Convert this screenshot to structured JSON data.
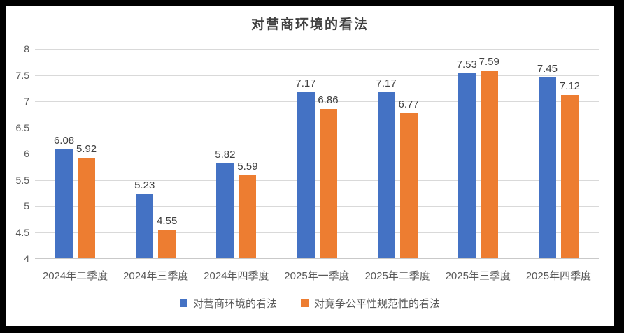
{
  "chart_data": {
    "type": "bar",
    "title": "对营商环境的看法",
    "categories": [
      "2024年二季度",
      "2024年三季度",
      "2024年四季度",
      "2025年一季度",
      "2025年二季度",
      "2025年三季度",
      "2025年四季度"
    ],
    "series": [
      {
        "name": "对营商环境的看法",
        "color": "#4472C4",
        "values": [
          6.08,
          5.23,
          5.82,
          7.17,
          7.17,
          7.53,
          7.45
        ]
      },
      {
        "name": "对竞争公平性规范性的看法",
        "color": "#ED7D31",
        "values": [
          5.92,
          4.55,
          5.59,
          6.86,
          6.77,
          7.59,
          7.12
        ]
      }
    ],
    "xlabel": "",
    "ylabel": "",
    "ylim": [
      4,
      8
    ],
    "ytick_step": 0.5,
    "ytick_labels": [
      "8",
      "7.5",
      "7",
      "6.5",
      "6",
      "5.5",
      "5",
      "4.5",
      "4"
    ],
    "grid": true,
    "data_labels": true,
    "legend_position": "bottom"
  },
  "colors": {
    "frame": "#000000",
    "background": "#FFFFFF",
    "gridline": "#D9D9D9",
    "axis_line": "#C9C9C9",
    "tick_label": "#595959",
    "data_label": "#404040",
    "title": "#404040"
  }
}
